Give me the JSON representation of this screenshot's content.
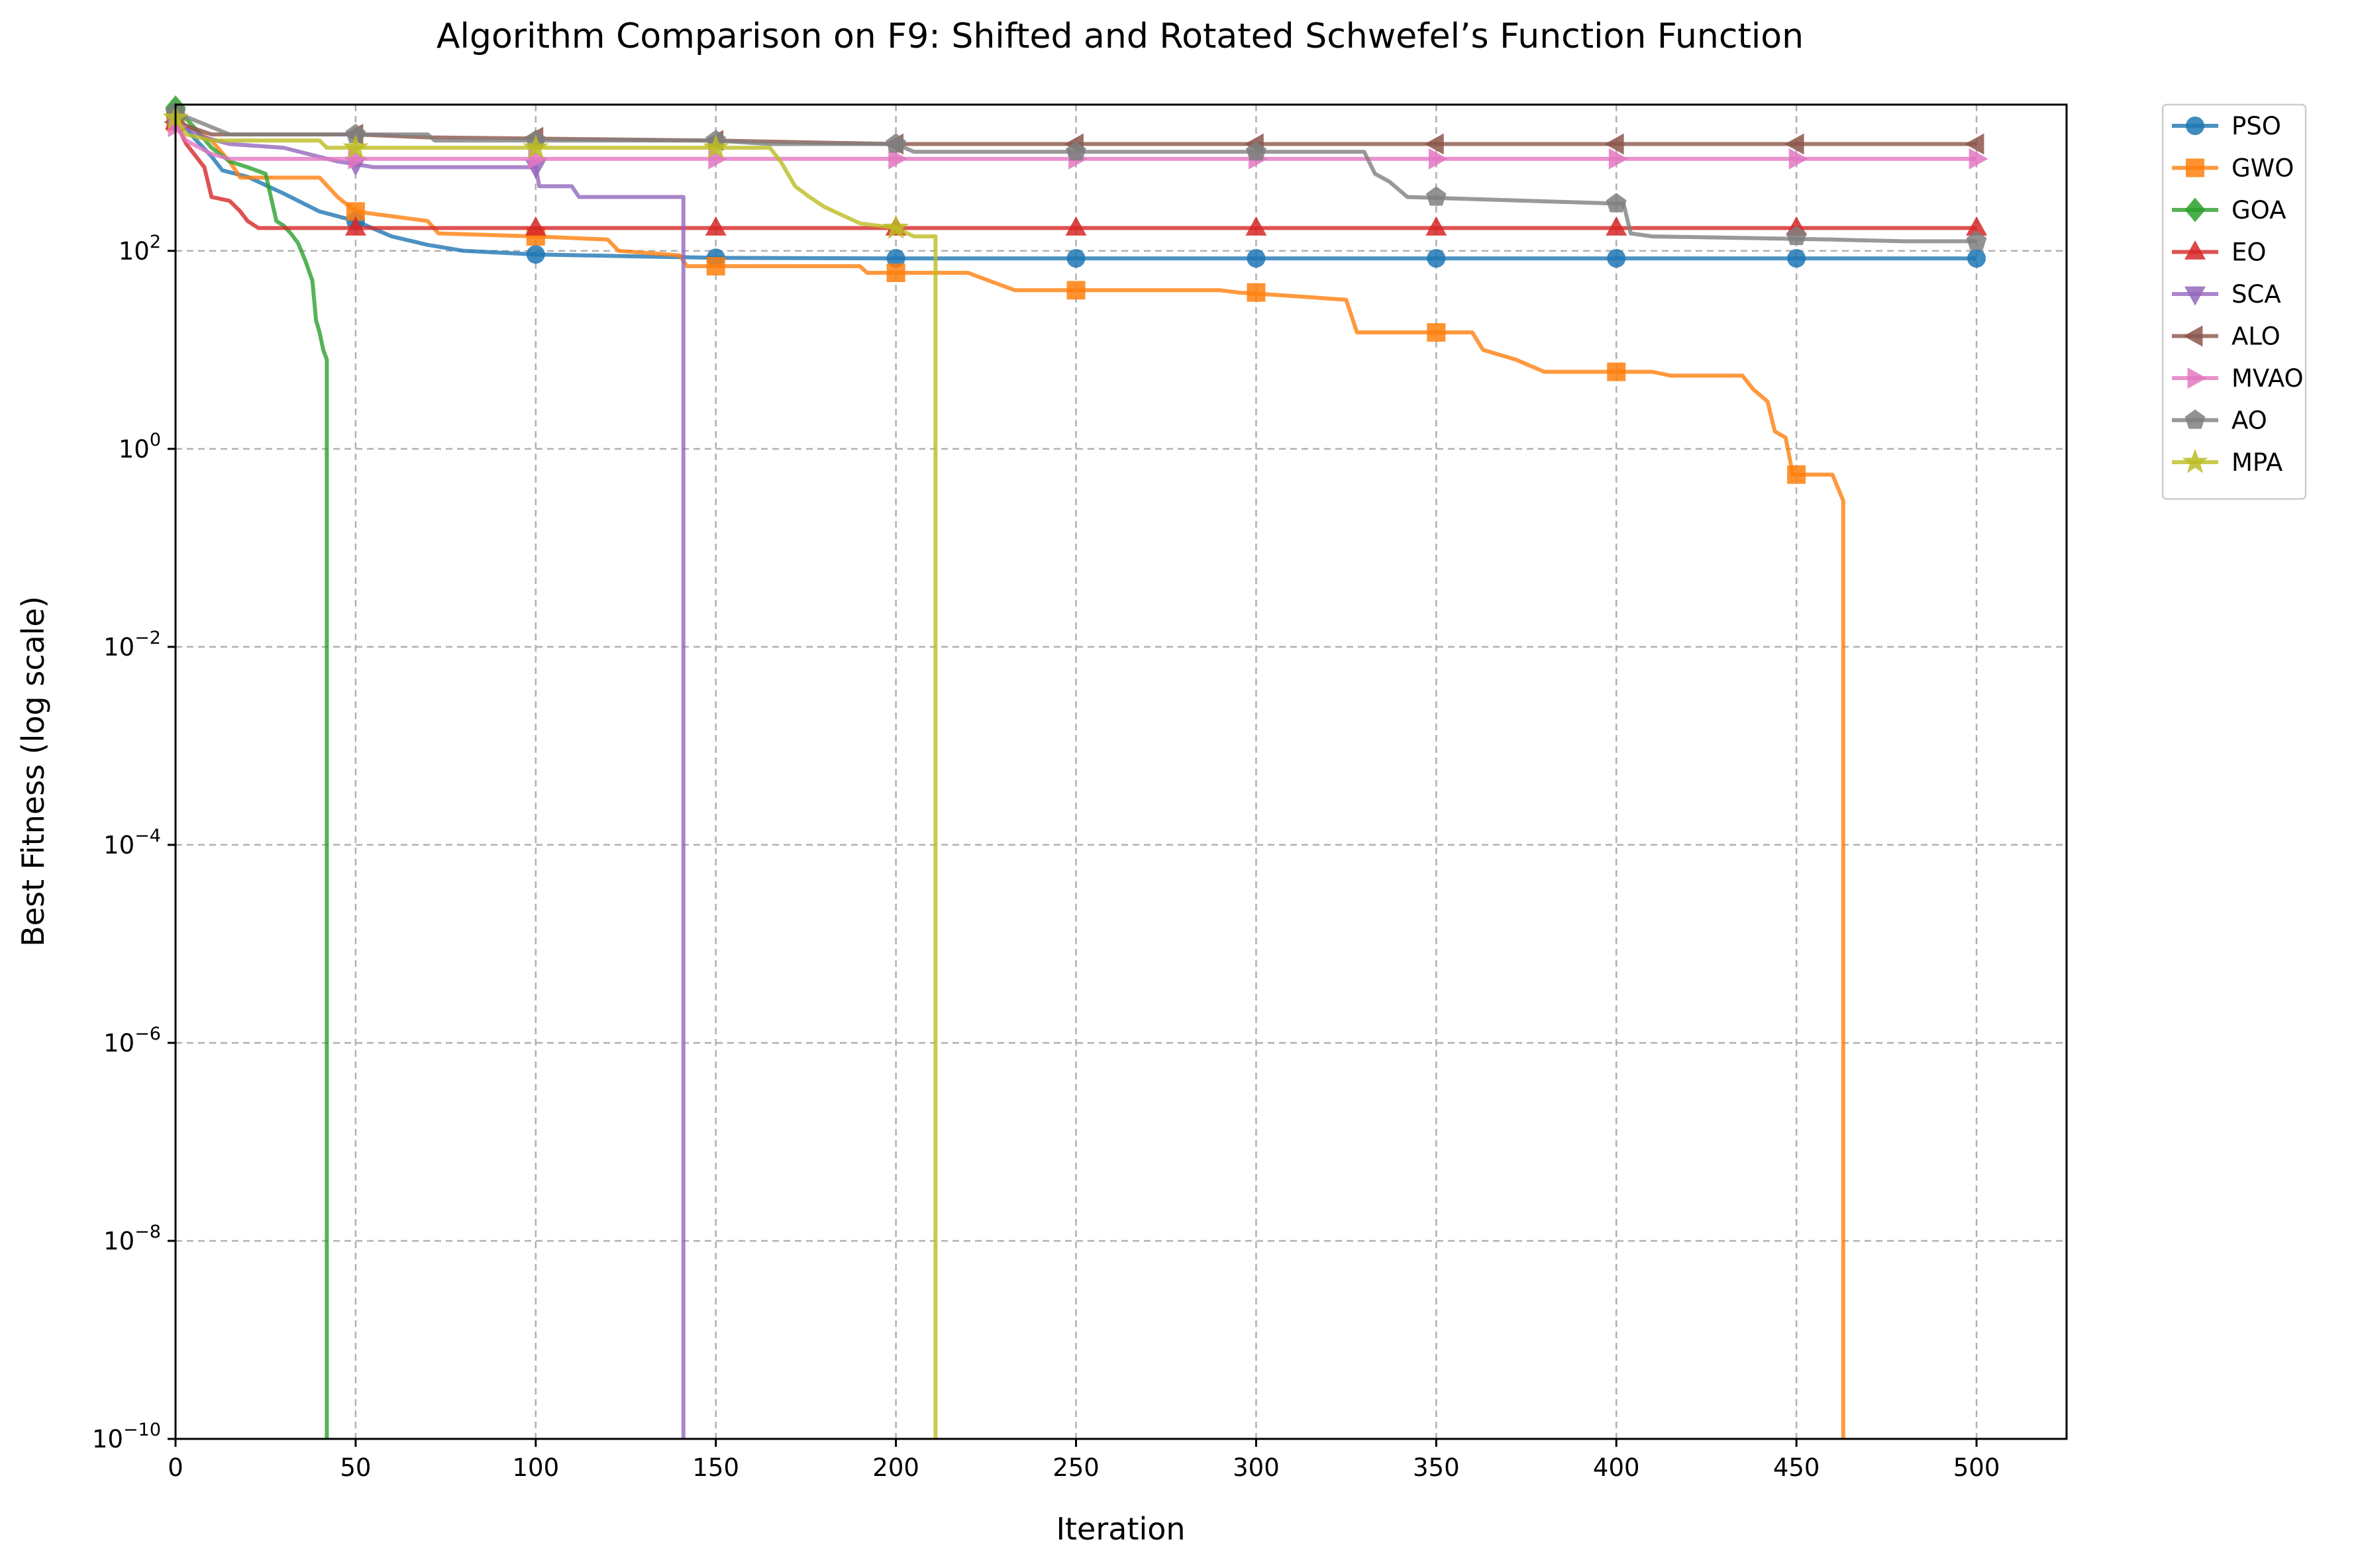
{
  "chart_data": {
    "type": "line",
    "title": "Algorithm Comparison on F9: Shifted and Rotated Schwefel’s Function Function",
    "xlabel": "Iteration",
    "ylabel": "Best Fitness (log scale)",
    "xlim": [
      0,
      525
    ],
    "ylim": [
      1e-10,
      3000.0
    ],
    "yscale": "log",
    "x_ticks": [
      0,
      50,
      100,
      150,
      200,
      250,
      300,
      350,
      400,
      450,
      500
    ],
    "y_ticks": [
      {
        "value": 1e-10,
        "base": "10",
        "exp": "−10"
      },
      {
        "value": 1e-08,
        "base": "10",
        "exp": "−8"
      },
      {
        "value": 1e-06,
        "base": "10",
        "exp": "−6"
      },
      {
        "value": 0.0001,
        "base": "10",
        "exp": "−4"
      },
      {
        "value": 0.01,
        "base": "10",
        "exp": "−2"
      },
      {
        "value": 1,
        "base": "10",
        "exp": "0"
      },
      {
        "value": 100,
        "base": "10",
        "exp": "2"
      }
    ],
    "grid": true,
    "legend_position": "outside-right",
    "series": [
      {
        "name": "PSO",
        "color": "#1f77b4",
        "marker": "circle",
        "points": [
          [
            0,
            2500
          ],
          [
            5,
            1400
          ],
          [
            10,
            900
          ],
          [
            13,
            650
          ],
          [
            20,
            560
          ],
          [
            30,
            380
          ],
          [
            40,
            250
          ],
          [
            50,
            200
          ],
          [
            60,
            140
          ],
          [
            70,
            115
          ],
          [
            80,
            100
          ],
          [
            100,
            92
          ],
          [
            150,
            85
          ],
          [
            200,
            84
          ],
          [
            500,
            84
          ]
        ]
      },
      {
        "name": "GWO",
        "color": "#ff7f0e",
        "marker": "square",
        "points": [
          [
            0,
            2000
          ],
          [
            5,
            1700
          ],
          [
            10,
            1300
          ],
          [
            15,
            800
          ],
          [
            18,
            550
          ],
          [
            40,
            550
          ],
          [
            45,
            350
          ],
          [
            50,
            250
          ],
          [
            70,
            200
          ],
          [
            73,
            150
          ],
          [
            100,
            140
          ],
          [
            120,
            130
          ],
          [
            123,
            100
          ],
          [
            140,
            90
          ],
          [
            142,
            70
          ],
          [
            190,
            70
          ],
          [
            192,
            60
          ],
          [
            220,
            60
          ],
          [
            233,
            40
          ],
          [
            290,
            40
          ],
          [
            295,
            38
          ],
          [
            310,
            35
          ],
          [
            325,
            32
          ],
          [
            328,
            15
          ],
          [
            360,
            15
          ],
          [
            363,
            10
          ],
          [
            372,
            8
          ],
          [
            380,
            6
          ],
          [
            410,
            6
          ],
          [
            415,
            5.5
          ],
          [
            435,
            5.5
          ],
          [
            438,
            4
          ],
          [
            442,
            3
          ],
          [
            444,
            1.5
          ],
          [
            447,
            1.3
          ],
          [
            449,
            0.55
          ],
          [
            460,
            0.55
          ],
          [
            463,
            0.3
          ],
          [
            463,
            1e-10
          ]
        ]
      },
      {
        "name": "GOA",
        "color": "#2ca02c",
        "marker": "diamond",
        "points": [
          [
            0,
            2800
          ],
          [
            5,
            1800
          ],
          [
            10,
            1100
          ],
          [
            15,
            800
          ],
          [
            20,
            700
          ],
          [
            25,
            600
          ],
          [
            28,
            200
          ],
          [
            30,
            180
          ],
          [
            32,
            150
          ],
          [
            34,
            120
          ],
          [
            36,
            80
          ],
          [
            38,
            50
          ],
          [
            39,
            20
          ],
          [
            40,
            15
          ],
          [
            41,
            10
          ],
          [
            42,
            8
          ],
          [
            42,
            1e-10
          ]
        ]
      },
      {
        "name": "EO",
        "color": "#d62728",
        "marker": "triangle-up",
        "points": [
          [
            0,
            2000
          ],
          [
            3,
            1200
          ],
          [
            8,
            700
          ],
          [
            10,
            350
          ],
          [
            15,
            320
          ],
          [
            18,
            250
          ],
          [
            20,
            200
          ],
          [
            23,
            170
          ],
          [
            500,
            170
          ]
        ]
      },
      {
        "name": "SCA",
        "color": "#9467bd",
        "marker": "triangle-down",
        "points": [
          [
            0,
            2000
          ],
          [
            8,
            1400
          ],
          [
            15,
            1200
          ],
          [
            30,
            1100
          ],
          [
            45,
            800
          ],
          [
            50,
            750
          ],
          [
            55,
            700
          ],
          [
            100,
            700
          ],
          [
            101,
            450
          ],
          [
            110,
            450
          ],
          [
            112,
            350
          ],
          [
            141,
            350
          ],
          [
            141,
            1e-10
          ]
        ]
      },
      {
        "name": "ALO",
        "color": "#8c564b",
        "marker": "triangle-left",
        "points": [
          [
            0,
            2000
          ],
          [
            10,
            1500
          ],
          [
            50,
            1500
          ],
          [
            70,
            1400
          ],
          [
            150,
            1300
          ],
          [
            200,
            1200
          ],
          [
            500,
            1200
          ]
        ]
      },
      {
        "name": "MVAO",
        "color": "#e377c2",
        "marker": "triangle-right",
        "points": [
          [
            0,
            1800
          ],
          [
            3,
            1300
          ],
          [
            10,
            950
          ],
          [
            15,
            850
          ],
          [
            50,
            850
          ],
          [
            500,
            850
          ]
        ]
      },
      {
        "name": "AO",
        "color": "#7f7f7f",
        "marker": "pentagon",
        "points": [
          [
            0,
            2500
          ],
          [
            15,
            1500
          ],
          [
            70,
            1500
          ],
          [
            72,
            1300
          ],
          [
            150,
            1300
          ],
          [
            165,
            1200
          ],
          [
            200,
            1200
          ],
          [
            205,
            1000
          ],
          [
            330,
            1000
          ],
          [
            333,
            600
          ],
          [
            337,
            500
          ],
          [
            342,
            350
          ],
          [
            400,
            300
          ],
          [
            402,
            300
          ],
          [
            404,
            150
          ],
          [
            410,
            140
          ],
          [
            460,
            130
          ],
          [
            480,
            125
          ],
          [
            500,
            125
          ]
        ]
      },
      {
        "name": "MPA",
        "color": "#bcbd22",
        "marker": "star",
        "points": [
          [
            0,
            2200
          ],
          [
            3,
            1500
          ],
          [
            10,
            1300
          ],
          [
            40,
            1300
          ],
          [
            42,
            1100
          ],
          [
            165,
            1100
          ],
          [
            168,
            800
          ],
          [
            172,
            450
          ],
          [
            176,
            350
          ],
          [
            180,
            280
          ],
          [
            185,
            230
          ],
          [
            190,
            190
          ],
          [
            200,
            170
          ],
          [
            205,
            140
          ],
          [
            211,
            140
          ],
          [
            211,
            1e-10
          ]
        ]
      }
    ]
  }
}
